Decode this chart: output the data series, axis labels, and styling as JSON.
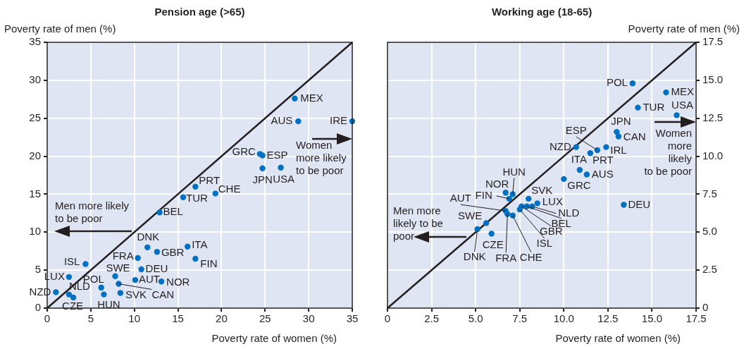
{
  "chart_data": [
    {
      "type": "scatter",
      "title": "Pension age (>65)",
      "xlabel": "Poverty rate of women (%)",
      "ylabel": "Poverty rate of men (%)",
      "xlim": [
        0,
        35
      ],
      "ylim": [
        0,
        35
      ],
      "xticks": [
        0,
        5,
        10,
        15,
        20,
        25,
        30,
        35
      ],
      "yticks": [
        0,
        5,
        10,
        15,
        20,
        25,
        30,
        35
      ],
      "grid": true,
      "marker": "circle",
      "series": [
        {
          "type": "scatter",
          "color": "#0070c0",
          "x": [
            28.4,
            28.8,
            35,
            24.4,
            24.7,
            24.7,
            26.8,
            17.0,
            15.6,
            19.3,
            12.9,
            11.5,
            12.6,
            16.1,
            17.0,
            4.4,
            10.4,
            10.8,
            7.8,
            2.5,
            6.2,
            8.2,
            6.5,
            10.1,
            13.1,
            8.4,
            1.0,
            2.5,
            3.0
          ],
          "values": [
            27.6,
            24.6,
            24.6,
            20.3,
            20.1,
            18.4,
            18.5,
            16.0,
            14.6,
            15.1,
            12.6,
            8.0,
            7.4,
            8.1,
            6.5,
            5.8,
            6.6,
            5.1,
            4.2,
            4.1,
            2.7,
            3.2,
            1.8,
            3.7,
            3.5,
            2.0,
            2.1,
            1.8,
            1.4
          ],
          "value_labels": [
            "MEX",
            "AUS",
            "IRE",
            "GRC",
            "ESP",
            "JPN",
            "USA",
            "PRT",
            "TUR",
            "CHE",
            "BEL",
            "DNK",
            "GBR",
            "ITA",
            "FIN",
            "ISL",
            "FRA",
            "DEU",
            "SWE",
            "LUX",
            "POL",
            "CAN",
            "HUN",
            "AUT",
            "NOR",
            "SVK",
            "NZD",
            "NLD",
            "CZE"
          ]
        },
        {
          "type": "line",
          "color": "#231f20",
          "x": [
            0,
            35
          ],
          "values": [
            0,
            35
          ],
          "line_style": "solid",
          "marker": "none"
        }
      ],
      "annotations": [
        "Men more likely to be poor",
        "Women more likely to be poor"
      ]
    },
    {
      "type": "scatter",
      "title": "Working age (18-65)",
      "xlabel": "Poverty rate of women (%)",
      "ylabel": "Poverty rate of men (%)",
      "xlim": [
        0,
        17.5
      ],
      "ylim": [
        0,
        17.5
      ],
      "xticks": [
        0,
        2.5,
        {
          "value": 5,
          "label": "5.0"
        },
        7.5,
        {
          "value": 10,
          "label": "10.0"
        },
        12.5,
        {
          "value": 15,
          "label": "15.0"
        },
        17.5
      ],
      "yticks": [
        0,
        2.5,
        {
          "value": 5,
          "label": "5.0"
        },
        7.5,
        {
          "value": 10,
          "label": "10.0"
        },
        12.5,
        {
          "value": 15,
          "label": "15.0"
        },
        17.5
      ],
      "grid": true,
      "marker": "circle",
      "series": [
        {
          "type": "scatter",
          "color": "#0070c0",
          "x": [
            13.9,
            15.8,
            14.2,
            16.4,
            13.0,
            13.1,
            12.4,
            11.9,
            11.5,
            10.9,
            11.3,
            10.7,
            10.0,
            13.4,
            7.1,
            6.7,
            6.9,
            6.7,
            8.0,
            8.5,
            8.2,
            7.9,
            7.6,
            7.5,
            7.1,
            6.8,
            5.6,
            5.1,
            5.9
          ],
          "values": [
            14.8,
            14.2,
            13.2,
            12.7,
            11.6,
            11.3,
            10.6,
            10.4,
            10.2,
            9.1,
            8.8,
            10.6,
            8.5,
            6.8,
            7.5,
            7.6,
            7.2,
            6.4,
            7.2,
            6.9,
            6.7,
            6.7,
            6.7,
            6.5,
            6.1,
            6.2,
            5.6,
            5.2,
            4.9
          ],
          "value_labels": [
            "POL",
            "MEX",
            "TUR",
            "USA",
            "JPN",
            "CAN",
            "IRL",
            "ESP",
            "PRT",
            "ITA",
            "AUS",
            "NZD",
            "GRC",
            "DEU",
            "HUN",
            "NOR",
            "FIN",
            "AUT",
            "SVK",
            "LUX",
            "NLD",
            "BEL",
            "GBR",
            "ISL",
            "CHE",
            "FRA",
            "SWE",
            "DNK",
            "CZE"
          ]
        },
        {
          "type": "line",
          "color": "#231f20",
          "x": [
            0,
            17.5
          ],
          "values": [
            0,
            17.5
          ],
          "line_style": "solid",
          "marker": "none"
        }
      ],
      "annotations": [
        "Men more likely to be poor",
        "Women more likely to be poor"
      ]
    }
  ]
}
